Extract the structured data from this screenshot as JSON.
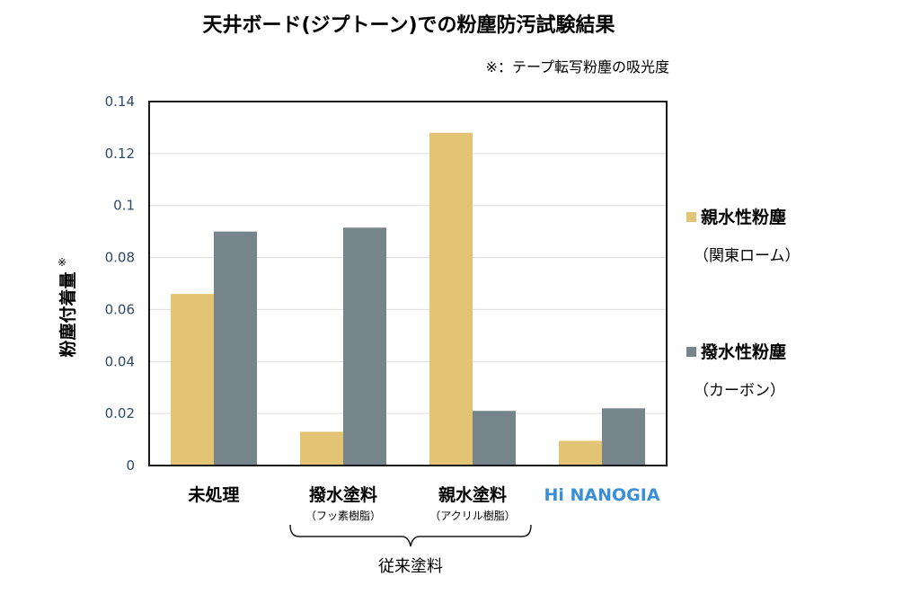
{
  "chart_data": {
    "type": "bar",
    "title": "天井ボード(ジプトーン)での粉塵防汚試験結果",
    "note": "※：テープ転写粉塵の吸光度",
    "ylabel": "粉塵付着量",
    "ylabel_mark": "※",
    "ylim": [
      0,
      0.14
    ],
    "yticks": [
      "0",
      "0.02",
      "0.04",
      "0.06",
      "0.08",
      "0.1",
      "0.12",
      "0.14"
    ],
    "categories": [
      "未処理",
      "撥水塗料",
      "親水塗料",
      "Hi NANOGIA"
    ],
    "category_sublabels": [
      "",
      "（フッ素樹脂）",
      "（アクリル樹脂）",
      ""
    ],
    "group_label": "従来塗料",
    "series": [
      {
        "name": "親水性粉塵",
        "name_sub": "（関東ローム）",
        "color": "#e3c474",
        "values": [
          0.066,
          0.013,
          0.128,
          0.0095
        ]
      },
      {
        "name": "撥水性粉塵",
        "name_sub": "（カーボン）",
        "color": "#76848c",
        "values": [
          0.09,
          0.0915,
          0.021,
          0.022
        ]
      }
    ],
    "grid": true,
    "legend_position": "right",
    "highlight_color": "#3a8fd6"
  }
}
